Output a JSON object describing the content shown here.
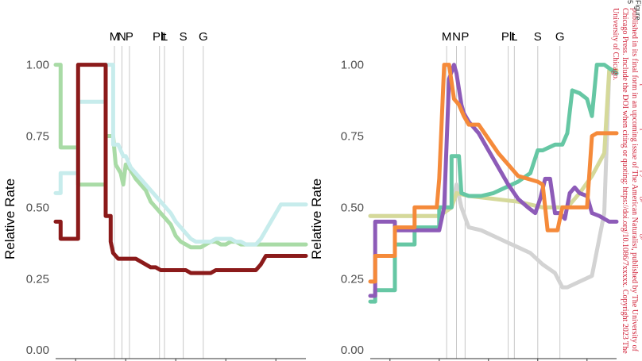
{
  "colors": {
    "light_green": "#a9dba6",
    "pale_cyan": "#c7ecec",
    "dark_red": "#8b1a1a",
    "teal": "#66c7a4",
    "orange": "#f58a3a",
    "purple": "#8d5bb8",
    "olive_yellow": "#d5d99a",
    "light_gray": "#d3d3d3"
  },
  "side_note": {
    "line1": "This is the author's accepted manuscript without copyediting, formatting, or final corrections. It will be published in its final form in an upcoming issue of",
    "line2": "The American Naturalist, published by The University of Chicago Press. Include the DOI when citing or quoting: https://doi.org/10.1086/7xxxxx. Copyright 2023 The University of Chicago."
  },
  "corner_note": "Figure 5",
  "chart_data": [
    {
      "type": "line",
      "ylabel": "Relative Rate",
      "ylim": [
        -0.03,
        1.06
      ],
      "xlim": [
        0,
        100
      ],
      "yticks": [
        "0.00",
        "0.25",
        "0.50",
        "0.75",
        "1.00"
      ],
      "ytick_values": [
        0,
        0.25,
        0.5,
        0.75,
        1.0
      ],
      "xtick_values": [
        8,
        28,
        48,
        68,
        88
      ],
      "events": [
        {
          "label": "M",
          "x": 23.5
        },
        {
          "label": "N",
          "x": 26.5
        },
        {
          "label": "P",
          "x": 29.5
        },
        {
          "label": "Plt",
          "x": 41.5
        },
        {
          "label": "L",
          "x": 43.5
        },
        {
          "label": "S",
          "x": 51
        },
        {
          "label": "G",
          "x": 59
        }
      ],
      "series": [
        {
          "color_key": "light_green",
          "x": [
            0,
            2,
            2,
            9,
            9,
            20,
            20,
            23,
            24,
            26,
            27,
            28,
            30,
            32,
            34,
            36,
            38,
            40,
            42,
            44,
            46,
            48,
            50,
            52,
            54,
            56,
            58,
            60,
            62,
            64,
            66,
            68,
            70,
            72,
            74,
            76,
            78,
            80,
            82,
            84,
            86,
            88,
            90,
            92,
            94,
            96,
            98,
            100
          ],
          "y": [
            1.0,
            1.0,
            0.71,
            0.71,
            0.58,
            0.58,
            0.75,
            0.75,
            0.65,
            0.62,
            0.58,
            0.65,
            0.63,
            0.6,
            0.58,
            0.56,
            0.52,
            0.5,
            0.48,
            0.46,
            0.44,
            0.4,
            0.38,
            0.37,
            0.36,
            0.36,
            0.36,
            0.37,
            0.38,
            0.38,
            0.37,
            0.37,
            0.38,
            0.38,
            0.37,
            0.37,
            0.37,
            0.37,
            0.37,
            0.37,
            0.37,
            0.37,
            0.37,
            0.37,
            0.37,
            0.37,
            0.37,
            0.37
          ]
        },
        {
          "color_key": "pale_cyan",
          "x": [
            0,
            2,
            2,
            9,
            9,
            20,
            20,
            23,
            23,
            25,
            27,
            28,
            30,
            32,
            34,
            36,
            38,
            40,
            42,
            44,
            46,
            48,
            50,
            52,
            54,
            56,
            58,
            60,
            62,
            64,
            66,
            68,
            70,
            72,
            74,
            76,
            78,
            80,
            82,
            84,
            86,
            88,
            90,
            92,
            94,
            96,
            98,
            100
          ],
          "y": [
            0.55,
            0.55,
            0.62,
            0.62,
            0.87,
            0.87,
            1.0,
            1.0,
            0.72,
            0.72,
            0.68,
            0.68,
            0.64,
            0.62,
            0.6,
            0.58,
            0.56,
            0.54,
            0.52,
            0.5,
            0.48,
            0.45,
            0.43,
            0.41,
            0.39,
            0.38,
            0.38,
            0.38,
            0.38,
            0.39,
            0.39,
            0.39,
            0.39,
            0.38,
            0.38,
            0.37,
            0.37,
            0.37,
            0.39,
            0.42,
            0.45,
            0.48,
            0.51,
            0.51,
            0.51,
            0.51,
            0.51,
            0.51
          ]
        },
        {
          "color_key": "dark_red",
          "x": [
            0,
            2,
            2,
            9,
            9,
            12,
            12,
            20,
            20,
            22,
            22,
            23,
            24,
            25,
            26,
            28,
            30,
            32,
            34,
            36,
            38,
            40,
            42,
            44,
            46,
            48,
            50,
            52,
            54,
            56,
            58,
            60,
            62,
            64,
            66,
            68,
            70,
            72,
            74,
            76,
            78,
            80,
            82,
            84,
            86,
            88,
            90,
            92,
            94,
            96,
            98,
            100
          ],
          "y": [
            0.45,
            0.45,
            0.39,
            0.39,
            1.0,
            1.0,
            1.0,
            1.0,
            0.47,
            0.47,
            0.38,
            0.34,
            0.33,
            0.32,
            0.32,
            0.32,
            0.32,
            0.32,
            0.31,
            0.3,
            0.29,
            0.29,
            0.28,
            0.28,
            0.28,
            0.28,
            0.28,
            0.28,
            0.27,
            0.27,
            0.27,
            0.27,
            0.27,
            0.28,
            0.28,
            0.28,
            0.28,
            0.28,
            0.28,
            0.28,
            0.28,
            0.28,
            0.3,
            0.33,
            0.33,
            0.33,
            0.33,
            0.33,
            0.33,
            0.33,
            0.33,
            0.33
          ]
        }
      ]
    },
    {
      "type": "line",
      "ylabel": "Relative Rate",
      "ylim": [
        -0.03,
        1.06
      ],
      "xlim": [
        0,
        100
      ],
      "yticks": [
        "0.00",
        "0.25",
        "0.50",
        "0.75",
        "1.00"
      ],
      "ytick_values": [
        0,
        0.25,
        0.5,
        0.75,
        1.0
      ],
      "xtick_values": [
        8,
        28,
        48,
        68,
        88
      ],
      "events": [
        {
          "label": "M",
          "x": 31
        },
        {
          "label": "N",
          "x": 35
        },
        {
          "label": "P",
          "x": 38.5
        },
        {
          "label": "Plt",
          "x": 56
        },
        {
          "label": "L",
          "x": 58.5
        },
        {
          "label": "S",
          "x": 68
        },
        {
          "label": "G",
          "x": 77
        }
      ],
      "series": [
        {
          "color_key": "light_gray",
          "x": [
            0,
            8,
            18,
            28,
            33,
            35,
            37,
            40,
            45,
            50,
            55,
            60,
            65,
            70,
            75,
            78,
            80,
            85,
            90,
            95,
            97,
            100
          ],
          "y": [
            0.47,
            0.47,
            0.47,
            0.47,
            0.5,
            0.58,
            0.5,
            0.43,
            0.42,
            0.4,
            0.38,
            0.36,
            0.34,
            0.3,
            0.27,
            0.22,
            0.22,
            0.24,
            0.26,
            0.48,
            0.97,
            0.97
          ]
        },
        {
          "color_key": "olive_yellow",
          "x": [
            0,
            8,
            18,
            28,
            33,
            35,
            40,
            50,
            60,
            70,
            75,
            80,
            85,
            90,
            95,
            97,
            100
          ],
          "y": [
            0.47,
            0.47,
            0.47,
            0.47,
            0.5,
            0.55,
            0.54,
            0.53,
            0.52,
            0.5,
            0.5,
            0.5,
            0.55,
            0.61,
            0.69,
            0.98,
            0.98
          ]
        },
        {
          "color_key": "teal",
          "x": [
            0,
            2,
            2,
            10,
            10,
            18,
            18,
            28,
            28,
            33,
            33,
            36,
            37,
            40,
            45,
            50,
            55,
            60,
            65,
            68,
            70,
            75,
            78,
            80,
            82,
            85,
            88,
            90,
            92,
            95,
            100
          ],
          "y": [
            0.17,
            0.17,
            0.21,
            0.21,
            0.37,
            0.37,
            0.43,
            0.43,
            0.5,
            0.5,
            0.68,
            0.68,
            0.55,
            0.54,
            0.54,
            0.55,
            0.57,
            0.59,
            0.62,
            0.7,
            0.7,
            0.72,
            0.72,
            0.76,
            0.91,
            0.9,
            0.88,
            0.82,
            1.0,
            1.0,
            0.97
          ]
        },
        {
          "color_key": "purple",
          "x": [
            0,
            2,
            2,
            10,
            10,
            18,
            18,
            28,
            30,
            32,
            34,
            35,
            37,
            38,
            40,
            44,
            48,
            52,
            56,
            60,
            64,
            67,
            69,
            71,
            73,
            75,
            77,
            79,
            81,
            83,
            85,
            88,
            90,
            93,
            95,
            97,
            100
          ],
          "y": [
            0.19,
            0.19,
            0.45,
            0.45,
            0.42,
            0.42,
            0.42,
            0.42,
            0.5,
            0.95,
            1.0,
            0.97,
            0.86,
            0.83,
            0.8,
            0.76,
            0.7,
            0.64,
            0.58,
            0.53,
            0.5,
            0.48,
            0.53,
            0.6,
            0.6,
            0.48,
            0.48,
            0.46,
            0.55,
            0.57,
            0.55,
            0.54,
            0.48,
            0.47,
            0.46,
            0.45,
            0.45
          ]
        },
        {
          "color_key": "orange",
          "x": [
            0,
            2,
            2,
            10,
            10,
            18,
            18,
            27,
            28,
            30,
            32,
            34,
            36,
            38,
            40,
            44,
            48,
            52,
            56,
            60,
            64,
            68,
            70,
            72,
            75,
            76,
            78,
            82,
            84,
            88,
            90,
            92,
            95,
            100
          ],
          "y": [
            0.24,
            0.24,
            0.33,
            0.33,
            0.43,
            0.43,
            0.5,
            0.5,
            0.6,
            1.0,
            1.0,
            0.88,
            0.86,
            0.82,
            0.79,
            0.79,
            0.74,
            0.69,
            0.65,
            0.61,
            0.6,
            0.59,
            0.58,
            0.42,
            0.42,
            0.42,
            0.5,
            0.5,
            0.5,
            0.5,
            0.75,
            0.76,
            0.76,
            0.76
          ]
        }
      ]
    }
  ]
}
